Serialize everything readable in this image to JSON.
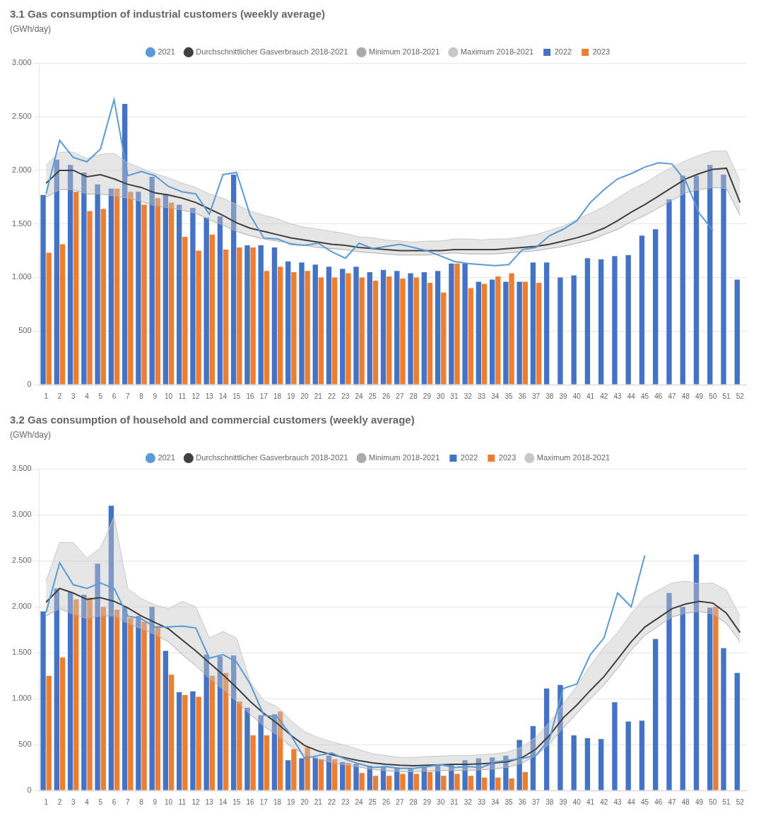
{
  "chart_data": [
    {
      "type": "bar",
      "title": "3.1 Gas consumption of industrial customers (weekly average)",
      "ylabel": "(GWh/day)",
      "categories": [
        1,
        2,
        3,
        4,
        5,
        6,
        7,
        8,
        9,
        10,
        11,
        12,
        13,
        14,
        15,
        16,
        17,
        18,
        19,
        20,
        21,
        22,
        23,
        24,
        25,
        26,
        27,
        28,
        29,
        30,
        31,
        32,
        33,
        34,
        35,
        36,
        37,
        38,
        39,
        40,
        41,
        42,
        43,
        44,
        45,
        46,
        47,
        48,
        49,
        50,
        51,
        52
      ],
      "ylim": [
        0,
        3000
      ],
      "yticks": [
        0,
        500,
        {
          "value": 1000,
          "label": "1.000"
        },
        {
          "value": 1500,
          "label": "1.500"
        },
        {
          "value": 2000,
          "label": "2.000"
        },
        {
          "value": 2500,
          "label": "2.500"
        },
        {
          "value": 3000,
          "label": "3.000"
        }
      ],
      "grid": true,
      "legend": "top",
      "series": [
        {
          "name": "2021",
          "type": "line",
          "color": "#5B9BD5",
          "values": [
            1780,
            2280,
            2120,
            2080,
            2200,
            2660,
            1950,
            1990,
            1950,
            1850,
            1800,
            1780,
            1590,
            1960,
            1980,
            1580,
            1370,
            1360,
            1310,
            1300,
            1320,
            1240,
            1180,
            1320,
            1270,
            1290,
            1310,
            1280,
            1250,
            1200,
            1150,
            1130,
            1120,
            1110,
            1120,
            1260,
            1280,
            1390,
            1450,
            1530,
            1700,
            1820,
            1920,
            1970,
            2030,
            2070,
            2060,
            1900,
            1600,
            1440,
            null,
            null
          ]
        },
        {
          "name": "Durchschnittlicher Gasverbrauch 2018-2021",
          "type": "line",
          "color": "#404040",
          "values": [
            1880,
            2000,
            2000,
            1940,
            1960,
            1920,
            1870,
            1840,
            1790,
            1770,
            1740,
            1700,
            1640,
            1580,
            1510,
            1460,
            1430,
            1400,
            1370,
            1350,
            1330,
            1310,
            1300,
            1280,
            1270,
            1260,
            1250,
            1250,
            1250,
            1250,
            1260,
            1260,
            1260,
            1260,
            1270,
            1280,
            1290,
            1310,
            1340,
            1370,
            1410,
            1460,
            1530,
            1610,
            1680,
            1760,
            1840,
            1920,
            1970,
            2010,
            2020,
            1700
          ]
        },
        {
          "name": "Minimum 2018-2021",
          "type": "line",
          "color": "#AAAAAA",
          "values": [
            1750,
            1820,
            1820,
            1780,
            1780,
            1760,
            1740,
            1710,
            1670,
            1650,
            1630,
            1600,
            1540,
            1490,
            1430,
            1390,
            1360,
            1340,
            1320,
            1300,
            1280,
            1270,
            1260,
            1240,
            1230,
            1220,
            1210,
            1210,
            1210,
            1220,
            1230,
            1220,
            1220,
            1220,
            1230,
            1240,
            1250,
            1270,
            1290,
            1320,
            1350,
            1400,
            1450,
            1520,
            1580,
            1650,
            1720,
            1790,
            1820,
            1840,
            1830,
            1580
          ]
        },
        {
          "name": "Maximum 2018-2021",
          "type": "area",
          "color": "#C8C8C8",
          "values": [
            2050,
            2170,
            2170,
            2110,
            2150,
            2160,
            2070,
            2020,
            1970,
            1930,
            1880,
            1840,
            1780,
            1740,
            1680,
            1620,
            1580,
            1550,
            1500,
            1470,
            1450,
            1430,
            1410,
            1380,
            1370,
            1350,
            1340,
            1330,
            1340,
            1340,
            1360,
            1360,
            1350,
            1360,
            1360,
            1380,
            1400,
            1440,
            1480,
            1540,
            1600,
            1660,
            1740,
            1820,
            1880,
            1960,
            2030,
            2090,
            2140,
            2180,
            2180,
            1900
          ]
        },
        {
          "name": "2022",
          "type": "bar",
          "color": "#4472C4",
          "values": [
            1770,
            2100,
            2050,
            1980,
            1870,
            1830,
            2620,
            1800,
            1940,
            1780,
            1680,
            1650,
            1560,
            1570,
            1960,
            1300,
            1300,
            1280,
            1150,
            1140,
            1120,
            1100,
            1080,
            1100,
            1050,
            1070,
            1060,
            1040,
            1050,
            1060,
            1130,
            1130,
            960,
            980,
            960,
            960,
            1140,
            1140,
            1000,
            1020,
            1180,
            1170,
            1200,
            1210,
            1390,
            1450,
            1730,
            1950,
            1950,
            2050,
            1960,
            980
          ]
        },
        {
          "name": "2023",
          "type": "bar",
          "color": "#ED7D31",
          "values": [
            1230,
            1310,
            1800,
            1620,
            1640,
            1830,
            1800,
            1680,
            1740,
            1700,
            1380,
            1250,
            1400,
            1260,
            1280,
            1280,
            1060,
            1100,
            1050,
            1060,
            1000,
            1000,
            1040,
            1000,
            970,
            1010,
            990,
            1000,
            950,
            860,
            1130,
            900,
            940,
            1010,
            1040,
            960,
            950,
            null,
            null,
            null,
            null,
            null,
            null,
            null,
            null,
            null,
            null,
            null,
            null,
            null,
            null,
            null
          ]
        }
      ]
    },
    {
      "type": "bar",
      "title": "3.2 Gas consumption of household and commercial customers (weekly average)",
      "ylabel": "(GWh/day)",
      "categories": [
        1,
        2,
        3,
        4,
        5,
        6,
        7,
        8,
        9,
        10,
        11,
        12,
        13,
        14,
        15,
        16,
        17,
        18,
        19,
        20,
        21,
        22,
        23,
        24,
        25,
        26,
        27,
        28,
        29,
        30,
        31,
        32,
        33,
        34,
        35,
        36,
        37,
        38,
        39,
        40,
        41,
        42,
        43,
        44,
        45,
        46,
        47,
        48,
        49,
        50,
        51,
        52
      ],
      "ylim": [
        0,
        3500
      ],
      "yticks": [
        0,
        500,
        {
          "value": 1000,
          "label": "1.000"
        },
        {
          "value": 1500,
          "label": "1.500"
        },
        {
          "value": 2000,
          "label": "2.000"
        },
        {
          "value": 2500,
          "label": "2.500"
        },
        {
          "value": 3000,
          "label": "3.000"
        },
        {
          "value": 3500,
          "label": "3.500"
        }
      ],
      "grid": true,
      "legend": "top",
      "series": [
        {
          "name": "2021",
          "type": "line",
          "color": "#5B9BD5",
          "values": [
            1940,
            2480,
            2240,
            2200,
            2260,
            2200,
            1900,
            1870,
            1780,
            1780,
            1790,
            1770,
            1440,
            1480,
            1400,
            1160,
            820,
            800,
            600,
            350,
            380,
            410,
            340,
            290,
            250,
            260,
            240,
            240,
            260,
            280,
            250,
            260,
            250,
            310,
            330,
            350,
            380,
            560,
            1110,
            1160,
            1480,
            1660,
            2150,
            2000,
            2560,
            null,
            null,
            null,
            null,
            null,
            null,
            null
          ]
        },
        {
          "name": "Durchschnittlicher Gasverbrauch 2018-2021",
          "type": "line",
          "color": "#404040",
          "values": [
            2050,
            2200,
            2150,
            2080,
            2100,
            2060,
            1990,
            1900,
            1830,
            1760,
            1640,
            1520,
            1390,
            1260,
            1120,
            970,
            840,
            730,
            600,
            490,
            430,
            390,
            355,
            325,
            300,
            285,
            275,
            270,
            275,
            280,
            285,
            285,
            290,
            300,
            315,
            360,
            450,
            600,
            790,
            930,
            1090,
            1240,
            1430,
            1620,
            1780,
            1880,
            1980,
            2030,
            2060,
            2040,
            1930,
            1720
          ]
        },
        {
          "name": "Minimum 2018-2021",
          "type": "line",
          "color": "#AAAAAA",
          "values": [
            1900,
            1980,
            1920,
            1870,
            1900,
            1900,
            1820,
            1760,
            1700,
            1620,
            1480,
            1360,
            1220,
            1100,
            970,
            830,
            700,
            600,
            480,
            390,
            340,
            305,
            275,
            255,
            230,
            215,
            205,
            205,
            210,
            215,
            220,
            220,
            225,
            235,
            255,
            300,
            380,
            510,
            680,
            840,
            1000,
            1150,
            1330,
            1530,
            1690,
            1790,
            1890,
            1930,
            1950,
            1920,
            1820,
            1620
          ]
        },
        {
          "name": "2022",
          "type": "bar",
          "color": "#4472C4",
          "values": [
            1950,
            2200,
            2160,
            2130,
            2470,
            3100,
            2000,
            1900,
            2000,
            1520,
            1070,
            1080,
            1480,
            1460,
            1470,
            900,
            820,
            830,
            330,
            350,
            360,
            380,
            310,
            290,
            270,
            260,
            250,
            240,
            260,
            270,
            290,
            330,
            350,
            360,
            380,
            550,
            700,
            1110,
            1150,
            600,
            570,
            560,
            960,
            750,
            760,
            1650,
            2150,
            2000,
            2570,
            1990,
            1550,
            1280
          ]
        },
        {
          "name": "2023",
          "type": "bar",
          "color": "#ED7D31",
          "values": [
            1250,
            1450,
            2080,
            2100,
            2000,
            1970,
            1880,
            1840,
            1790,
            1260,
            1040,
            1020,
            1250,
            1280,
            970,
            600,
            600,
            860,
            450,
            470,
            340,
            340,
            300,
            190,
            160,
            160,
            180,
            180,
            200,
            160,
            180,
            160,
            140,
            140,
            130,
            200,
            null,
            null,
            null,
            null,
            null,
            null,
            null,
            null,
            null,
            null,
            null,
            null,
            null,
            2000,
            null,
            null
          ]
        },
        {
          "name": "Maximum 2018-2021",
          "type": "area",
          "color": "#C8C8C8",
          "values": [
            2280,
            2700,
            2700,
            2530,
            2640,
            2980,
            2200,
            2090,
            2020,
            1980,
            2060,
            2000,
            1660,
            1730,
            1660,
            1180,
            980,
            910,
            760,
            640,
            575,
            530,
            490,
            445,
            400,
            380,
            360,
            360,
            370,
            375,
            380,
            380,
            390,
            400,
            420,
            475,
            580,
            740,
            940,
            1140,
            1360,
            1560,
            1720,
            1930,
            2100,
            2180,
            2260,
            2280,
            2250,
            2260,
            2180,
            1900
          ]
        }
      ]
    }
  ]
}
